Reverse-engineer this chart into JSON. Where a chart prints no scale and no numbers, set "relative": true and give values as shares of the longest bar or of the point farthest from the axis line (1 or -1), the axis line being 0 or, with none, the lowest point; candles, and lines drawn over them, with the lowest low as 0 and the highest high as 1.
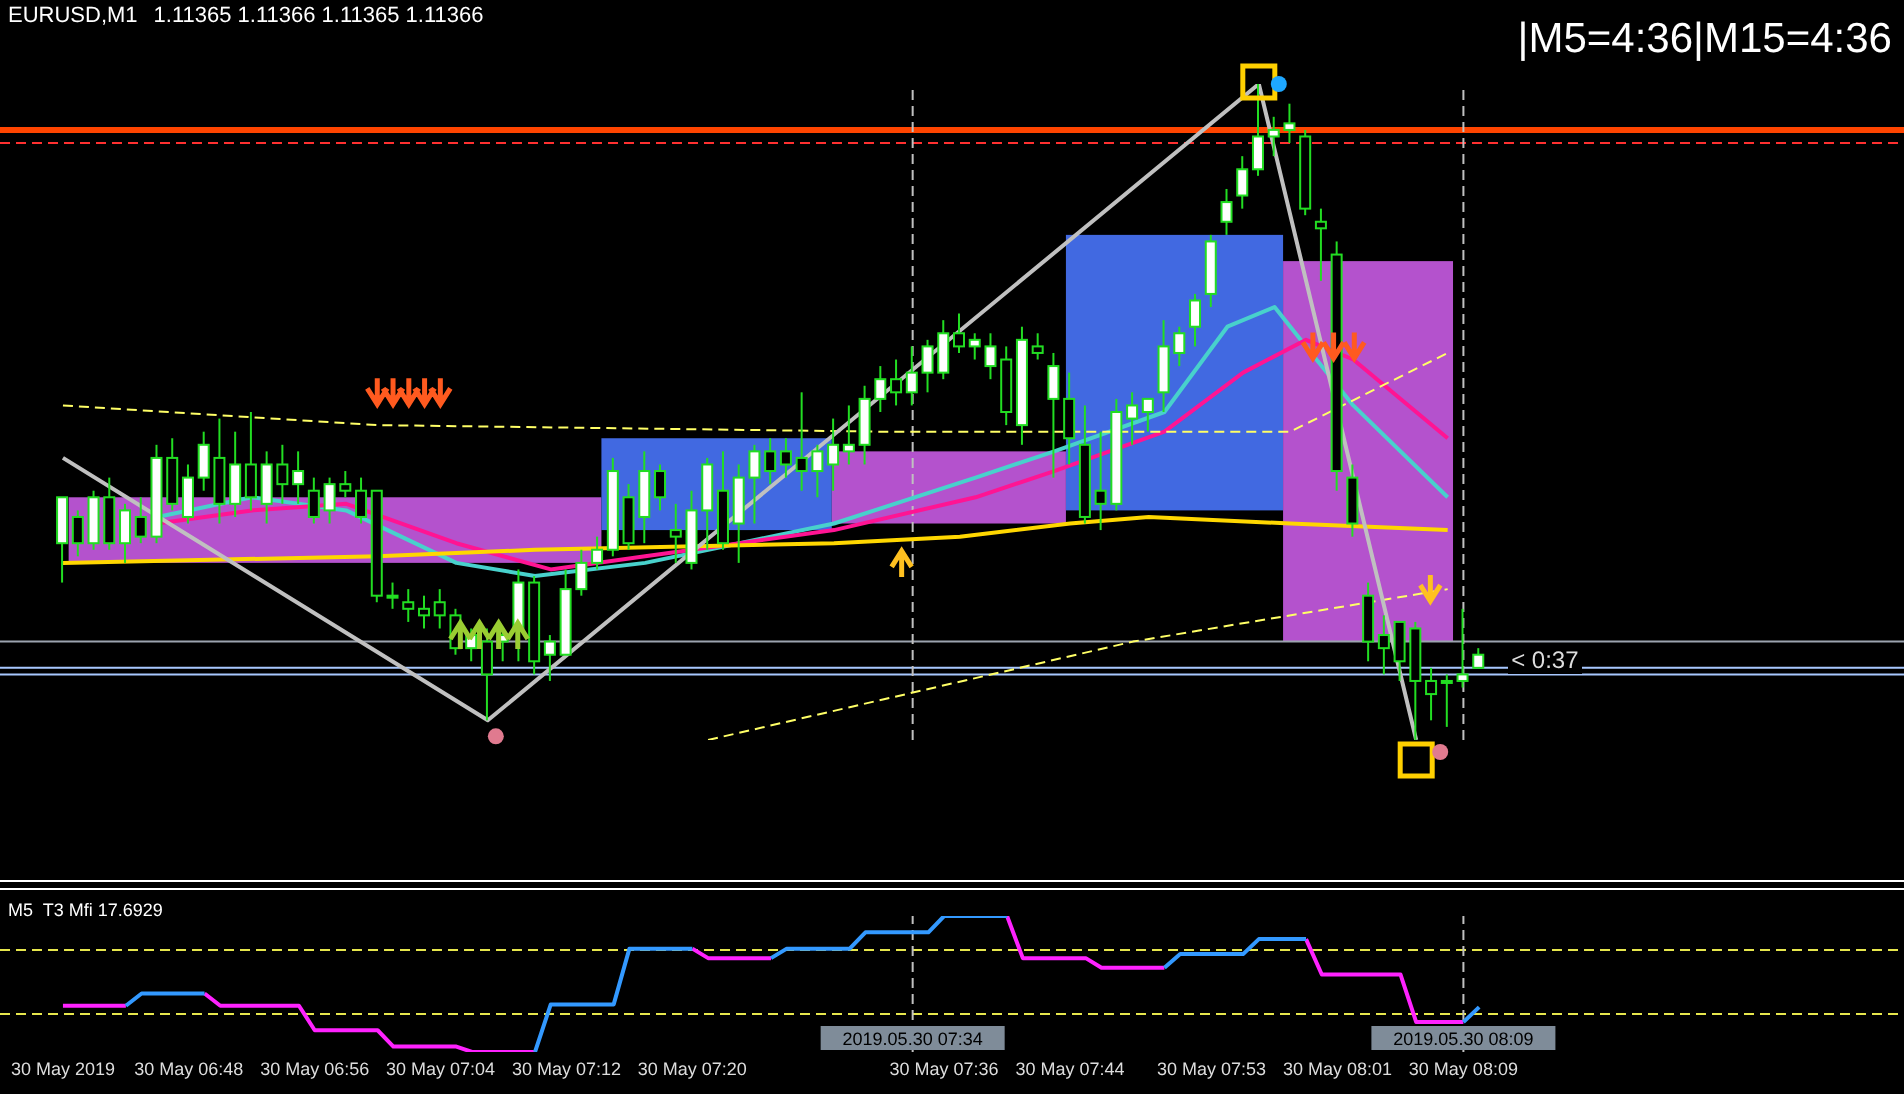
{
  "chart_data": [
    {
      "type": "candlestick",
      "title": "EURUSD,M1",
      "subtitle": "1.11365 1.11366 1.11365 1.11366",
      "relative": true,
      "tick_labels": false,
      "xlim": [
        "2019-05-30T06:36",
        "2019-05-30T08:37"
      ],
      "x": [
        "2019-05-30T06:40",
        "2019-05-30T06:41",
        "2019-05-30T06:42",
        "2019-05-30T06:43",
        "2019-05-30T06:44",
        "2019-05-30T06:45",
        "2019-05-30T06:46",
        "2019-05-30T06:47",
        "2019-05-30T06:48",
        "2019-05-30T06:49",
        "2019-05-30T06:50",
        "2019-05-30T06:51",
        "2019-05-30T06:52",
        "2019-05-30T06:53",
        "2019-05-30T06:54",
        "2019-05-30T06:55",
        "2019-05-30T06:56",
        "2019-05-30T06:57",
        "2019-05-30T06:58",
        "2019-05-30T06:59",
        "2019-05-30T07:00",
        "2019-05-30T07:01",
        "2019-05-30T07:02",
        "2019-05-30T07:03",
        "2019-05-30T07:04",
        "2019-05-30T07:05",
        "2019-05-30T07:06",
        "2019-05-30T07:07",
        "2019-05-30T07:08",
        "2019-05-30T07:09",
        "2019-05-30T07:10",
        "2019-05-30T07:11",
        "2019-05-30T07:12",
        "2019-05-30T07:13",
        "2019-05-30T07:14",
        "2019-05-30T07:15",
        "2019-05-30T07:16",
        "2019-05-30T07:17",
        "2019-05-30T07:18",
        "2019-05-30T07:19",
        "2019-05-30T07:20",
        "2019-05-30T07:21",
        "2019-05-30T07:22",
        "2019-05-30T07:23",
        "2019-05-30T07:24",
        "2019-05-30T07:25",
        "2019-05-30T07:26",
        "2019-05-30T07:27",
        "2019-05-30T07:28",
        "2019-05-30T07:29",
        "2019-05-30T07:30",
        "2019-05-30T07:31",
        "2019-05-30T07:32",
        "2019-05-30T07:33",
        "2019-05-30T07:34",
        "2019-05-30T07:35",
        "2019-05-30T07:36",
        "2019-05-30T07:37",
        "2019-05-30T07:38",
        "2019-05-30T07:39",
        "2019-05-30T07:40",
        "2019-05-30T07:41",
        "2019-05-30T07:42",
        "2019-05-30T07:43",
        "2019-05-30T07:44",
        "2019-05-30T07:45",
        "2019-05-30T07:46",
        "2019-05-30T07:47",
        "2019-05-30T07:48",
        "2019-05-30T07:49",
        "2019-05-30T07:50",
        "2019-05-30T07:51",
        "2019-05-30T07:52",
        "2019-05-30T07:53",
        "2019-05-30T07:54",
        "2019-05-30T07:55",
        "2019-05-30T07:56",
        "2019-05-30T07:57",
        "2019-05-30T07:58",
        "2019-05-30T07:59",
        "2019-05-30T08:00",
        "2019-05-30T08:01",
        "2019-05-30T08:02",
        "2019-05-30T08:03",
        "2019-05-30T08:04",
        "2019-05-30T08:05",
        "2019-05-30T08:06",
        "2019-05-30T08:07",
        "2019-05-30T08:08",
        "2019-05-30T08:09",
        "2019-05-30T08:10"
      ],
      "ohlc": [
        [
          0.3,
          0.37,
          0.24,
          0.37
        ],
        [
          0.34,
          0.35,
          0.28,
          0.3
        ],
        [
          0.3,
          0.38,
          0.29,
          0.37
        ],
        [
          0.37,
          0.4,
          0.29,
          0.3
        ],
        [
          0.3,
          0.36,
          0.27,
          0.35
        ],
        [
          0.34,
          0.37,
          0.3,
          0.31
        ],
        [
          0.31,
          0.45,
          0.3,
          0.43
        ],
        [
          0.43,
          0.46,
          0.35,
          0.36
        ],
        [
          0.34,
          0.42,
          0.33,
          0.4
        ],
        [
          0.4,
          0.47,
          0.38,
          0.45
        ],
        [
          0.43,
          0.49,
          0.33,
          0.36
        ],
        [
          0.36,
          0.47,
          0.34,
          0.42
        ],
        [
          0.42,
          0.5,
          0.35,
          0.37
        ],
        [
          0.36,
          0.44,
          0.33,
          0.42
        ],
        [
          0.42,
          0.45,
          0.36,
          0.39
        ],
        [
          0.39,
          0.44,
          0.36,
          0.41
        ],
        [
          0.38,
          0.4,
          0.33,
          0.34
        ],
        [
          0.35,
          0.4,
          0.33,
          0.39
        ],
        [
          0.39,
          0.41,
          0.37,
          0.38
        ],
        [
          0.38,
          0.4,
          0.33,
          0.34
        ],
        [
          0.38,
          0.38,
          0.21,
          0.22
        ],
        [
          0.22,
          0.24,
          0.2,
          0.22
        ],
        [
          0.21,
          0.23,
          0.18,
          0.2
        ],
        [
          0.2,
          0.22,
          0.17,
          0.19
        ],
        [
          0.21,
          0.23,
          0.17,
          0.19
        ],
        [
          0.19,
          0.2,
          0.13,
          0.14
        ],
        [
          0.14,
          0.17,
          0.12,
          0.16
        ],
        [
          0.15,
          0.17,
          0.03,
          0.1
        ],
        [
          0.15,
          0.17,
          0.12,
          0.16
        ],
        [
          0.17,
          0.26,
          0.12,
          0.24
        ],
        [
          0.24,
          0.25,
          0.1,
          0.12
        ],
        [
          0.13,
          0.16,
          0.09,
          0.15
        ],
        [
          0.13,
          0.26,
          0.13,
          0.23
        ],
        [
          0.23,
          0.29,
          0.22,
          0.27
        ],
        [
          0.27,
          0.31,
          0.26,
          0.29
        ],
        [
          0.29,
          0.43,
          0.28,
          0.41
        ],
        [
          0.37,
          0.39,
          0.29,
          0.3
        ],
        [
          0.34,
          0.44,
          0.3,
          0.41
        ],
        [
          0.41,
          0.42,
          0.35,
          0.37
        ],
        [
          0.32,
          0.36,
          0.27,
          0.31
        ],
        [
          0.27,
          0.38,
          0.26,
          0.35
        ],
        [
          0.35,
          0.43,
          0.29,
          0.42
        ],
        [
          0.38,
          0.44,
          0.29,
          0.3
        ],
        [
          0.33,
          0.42,
          0.27,
          0.4
        ],
        [
          0.4,
          0.45,
          0.33,
          0.44
        ],
        [
          0.44,
          0.46,
          0.39,
          0.41
        ],
        [
          0.44,
          0.46,
          0.4,
          0.42
        ],
        [
          0.43,
          0.53,
          0.38,
          0.41
        ],
        [
          0.41,
          0.45,
          0.37,
          0.44
        ],
        [
          0.42,
          0.49,
          0.38,
          0.45
        ],
        [
          0.44,
          0.51,
          0.42,
          0.45
        ],
        [
          0.45,
          0.54,
          0.42,
          0.52
        ],
        [
          0.52,
          0.57,
          0.5,
          0.55
        ],
        [
          0.55,
          0.58,
          0.51,
          0.53
        ],
        [
          0.53,
          0.6,
          0.51,
          0.56
        ],
        [
          0.56,
          0.61,
          0.53,
          0.6
        ],
        [
          0.56,
          0.64,
          0.55,
          0.62
        ],
        [
          0.62,
          0.65,
          0.59,
          0.6
        ],
        [
          0.6,
          0.62,
          0.58,
          0.61
        ],
        [
          0.57,
          0.62,
          0.55,
          0.6
        ],
        [
          0.58,
          0.6,
          0.48,
          0.5
        ],
        [
          0.48,
          0.63,
          0.45,
          0.61
        ],
        [
          0.6,
          0.62,
          0.58,
          0.59
        ],
        [
          0.52,
          0.59,
          0.4,
          0.57
        ],
        [
          0.52,
          0.56,
          0.42,
          0.46
        ],
        [
          0.45,
          0.51,
          0.33,
          0.34
        ],
        [
          0.38,
          0.47,
          0.32,
          0.36
        ],
        [
          0.36,
          0.52,
          0.35,
          0.5
        ],
        [
          0.49,
          0.53,
          0.45,
          0.51
        ],
        [
          0.5,
          0.52,
          0.47,
          0.52
        ],
        [
          0.53,
          0.64,
          0.5,
          0.6
        ],
        [
          0.59,
          0.63,
          0.57,
          0.62
        ],
        [
          0.63,
          0.68,
          0.6,
          0.67
        ],
        [
          0.68,
          0.77,
          0.66,
          0.76
        ],
        [
          0.79,
          0.84,
          0.77,
          0.82
        ],
        [
          0.83,
          0.89,
          0.81,
          0.87
        ],
        [
          0.87,
          1.0,
          0.86,
          0.92
        ],
        [
          0.92,
          0.95,
          0.89,
          0.93
        ],
        [
          0.93,
          0.97,
          0.91,
          0.94
        ],
        [
          0.92,
          0.93,
          0.8,
          0.81
        ],
        [
          0.79,
          0.81,
          0.7,
          0.78
        ],
        [
          0.74,
          0.76,
          0.38,
          0.41
        ],
        [
          0.4,
          0.42,
          0.31,
          0.33
        ],
        [
          0.22,
          0.24,
          0.12,
          0.15
        ],
        [
          0.16,
          0.19,
          0.1,
          0.14
        ],
        [
          0.18,
          0.18,
          0.09,
          0.12
        ],
        [
          0.17,
          0.18,
          0.0,
          0.09
        ],
        [
          0.09,
          0.11,
          0.03,
          0.07
        ],
        [
          0.09,
          0.1,
          0.02,
          0.09
        ],
        [
          0.09,
          0.2,
          0.08,
          0.1
        ],
        [
          0.11,
          0.14,
          0.11,
          0.13
        ]
      ],
      "series": [
        {
          "type": "line",
          "color": "#48d1cc",
          "x": [
            "2019-05-30T06:46",
            "2019-05-30T06:52",
            "2019-05-30T06:58",
            "2019-05-30T07:05",
            "2019-05-30T07:10",
            "2019-05-30T07:17",
            "2019-05-30T07:23",
            "2019-05-30T07:29",
            "2019-05-30T07:38",
            "2019-05-30T07:43",
            "2019-05-30T07:50",
            "2019-05-30T07:54",
            "2019-05-30T07:57",
            "2019-05-30T07:59",
            "2019-05-30T08:02",
            "2019-05-30T08:08"
          ],
          "values": [
            0.34,
            0.37,
            0.35,
            0.27,
            0.25,
            0.27,
            0.3,
            0.33,
            0.4,
            0.44,
            0.5,
            0.63,
            0.66,
            0.6,
            0.51,
            0.37
          ]
        },
        {
          "type": "line",
          "color": "#ff1493",
          "x": [
            "2019-05-30T06:46",
            "2019-05-30T06:52",
            "2019-05-30T06:58",
            "2019-05-30T07:05",
            "2019-05-30T07:11",
            "2019-05-30T07:17",
            "2019-05-30T07:23",
            "2019-05-30T07:29",
            "2019-05-30T07:38",
            "2019-05-30T07:43",
            "2019-05-30T07:50",
            "2019-05-30T07:55",
            "2019-05-30T07:59",
            "2019-05-30T08:02",
            "2019-05-30T08:08"
          ],
          "values": [
            0.33,
            0.35,
            0.36,
            0.3,
            0.26,
            0.28,
            0.3,
            0.32,
            0.37,
            0.41,
            0.47,
            0.56,
            0.61,
            0.58,
            0.46
          ]
        },
        {
          "type": "line",
          "color": "#ffd700",
          "x": [
            "2019-05-30T06:40",
            "2019-05-30T07:00",
            "2019-05-30T07:10",
            "2019-05-30T07:29",
            "2019-05-30T07:37",
            "2019-05-30T07:44",
            "2019-05-30T07:49",
            "2019-05-30T07:58",
            "2019-05-30T08:08"
          ],
          "values": [
            0.27,
            0.28,
            0.29,
            0.3,
            0.31,
            0.33,
            0.34,
            0.33,
            0.32
          ]
        },
        {
          "type": "line",
          "color": "#ffff66",
          "line_style": "dashed",
          "x": [
            "2019-05-30T06:40",
            "2019-05-30T07:00",
            "2019-05-30T07:32",
            "2019-05-30T07:58",
            "2019-05-30T08:08"
          ],
          "values": [
            0.51,
            0.48,
            0.47,
            0.47,
            0.59
          ]
        },
        {
          "type": "line",
          "color": "#ffff66",
          "line_style": "dashed",
          "x": [
            "2019-05-30T07:21",
            "2019-05-30T07:30",
            "2019-05-30T07:48",
            "2019-05-30T08:08"
          ],
          "values": [
            0.0,
            0.05,
            0.15,
            0.23
          ]
        },
        {
          "type": "line",
          "color": "#c0c0c0",
          "x": [
            "2019-05-30T06:40",
            "2019-05-30T07:07",
            "2019-05-30T07:56",
            "2019-05-30T08:06"
          ],
          "values": [
            0.43,
            0.03,
            1.0,
            0.0
          ]
        }
      ],
      "ref_lines": [
        {
          "axis": "y",
          "value": 0.93,
          "color": "#ff4500",
          "line_style": "solid"
        },
        {
          "axis": "y",
          "value": 0.91,
          "color": "#ff3030",
          "line_style": "dashed"
        },
        {
          "axis": "y",
          "value": 0.15,
          "color": "#9ca3af",
          "line_style": "solid"
        },
        {
          "axis": "y",
          "value": 0.11,
          "color": "#a8c8ff",
          "line_style": "solid"
        },
        {
          "axis": "y",
          "value": 0.1,
          "color": "#a8c8ff",
          "line_style": "solid"
        },
        {
          "axis": "x",
          "value": "2019-05-30T07:34",
          "color": "#c0c0c0",
          "line_style": "dashed"
        },
        {
          "axis": "x",
          "value": "2019-05-30T08:09",
          "color": "#c0c0c0",
          "line_style": "dashed"
        }
      ],
      "annotations": [
        "|M5=4:36|M15=4:36",
        "< 0:37"
      ]
    },
    {
      "type": "line",
      "title": "M5  T3 Mfi 17.6929",
      "relative": true,
      "tick_labels": "x",
      "xlim": [
        "2019-05-30T06:36",
        "2019-05-30T08:37"
      ],
      "xticks": [
        {
          "value": "2019-05-30T06:40",
          "label": "30 May 2019"
        },
        {
          "value": "2019-05-30T06:48",
          "label": "30 May 06:48"
        },
        {
          "value": "2019-05-30T06:56",
          "label": "30 May 06:56"
        },
        {
          "value": "2019-05-30T07:04",
          "label": "30 May 07:04"
        },
        {
          "value": "2019-05-30T07:12",
          "label": "30 May 07:12"
        },
        {
          "value": "2019-05-30T07:20",
          "label": "30 May 07:20"
        },
        {
          "value": "2019-05-30T07:36",
          "label": "30 May 07:36"
        },
        {
          "value": "2019-05-30T07:44",
          "label": "30 May 07:44"
        },
        {
          "value": "2019-05-30T07:53",
          "label": "30 May 07:53"
        },
        {
          "value": "2019-05-30T08:01",
          "label": "30 May 08:01"
        },
        {
          "value": "2019-05-30T08:09",
          "label": "30 May 08:09"
        }
      ],
      "series": [
        {
          "color": "#ff22ff",
          "x": [
            "2019-05-30T06:40",
            "2019-05-30T06:44",
            "2019-05-30T06:46",
            "2019-05-30T06:49",
            "2019-05-30T06:50",
            "2019-05-30T06:55",
            "2019-05-30T06:56",
            "2019-05-30T07:00",
            "2019-05-30T07:01",
            "2019-05-30T07:05",
            "2019-05-30T07:06",
            "2019-05-30T07:10",
            "2019-05-30T07:15",
            "2019-05-30T07:20",
            "2019-05-30T07:21",
            "2019-05-30T07:25",
            "2019-05-30T07:30",
            "2019-05-30T07:40",
            "2019-05-30T07:41",
            "2019-05-30T07:45",
            "2019-05-30T07:46",
            "2019-05-30T07:50",
            "2019-05-30T07:55",
            "2019-05-30T07:59",
            "2019-05-30T08:00",
            "2019-05-30T08:05",
            "2019-05-30T08:06",
            "2019-05-30T08:09"
          ],
          "values": [
            0.34,
            0.34,
            null,
            0.43,
            0.34,
            0.34,
            0.16,
            0.16,
            0.04,
            0.04,
            0,
            0,
            null,
            0.76,
            0.69,
            0.69,
            null,
            1,
            0.69,
            0.69,
            0.62,
            0.62,
            null,
            0.83,
            0.57,
            0.57,
            0.22,
            0.22
          ]
        },
        {
          "color": "#3399ff",
          "x": [
            "2019-05-30T06:44",
            "2019-05-30T06:45",
            "2019-05-30T06:49",
            "2019-05-30T06:55",
            "2019-05-30T07:10",
            "2019-05-30T07:11",
            "2019-05-30T07:15",
            "2019-05-30T07:16",
            "2019-05-30T07:20",
            "2019-05-30T07:22",
            "2019-05-30T07:25",
            "2019-05-30T07:26",
            "2019-05-30T07:30",
            "2019-05-30T07:31",
            "2019-05-30T07:35",
            "2019-05-30T07:36",
            "2019-05-30T07:40",
            "2019-05-30T07:43",
            "2019-05-30T07:50",
            "2019-05-30T07:51",
            "2019-05-30T07:55",
            "2019-05-30T07:56",
            "2019-05-30T07:59",
            "2019-05-30T08:02",
            "2019-05-30T08:09",
            "2019-05-30T08:10"
          ],
          "values": [
            0.34,
            0.43,
            0.43,
            null,
            0,
            0.35,
            0.35,
            0.76,
            0.76,
            null,
            0.69,
            0.76,
            0.76,
            0.88,
            0.88,
            1,
            1,
            null,
            0.62,
            0.72,
            0.72,
            0.83,
            0.83,
            null,
            0.22,
            0.33
          ]
        }
      ],
      "ref_lines": [
        {
          "axis": "y",
          "value": 0.75,
          "color": "#e6e64c",
          "line_style": "dashed"
        },
        {
          "axis": "y",
          "value": 0.28,
          "color": "#e6e64c",
          "line_style": "dashed"
        },
        {
          "axis": "x",
          "value": "2019-05-30T07:34",
          "color": "#c0c0c0",
          "line_style": "dashed",
          "label": "2019.05.30 07:34"
        },
        {
          "axis": "x",
          "value": "2019-05-30T08:09",
          "color": "#c0c0c0",
          "line_style": "dashed",
          "label": "2019.05.30 08:09"
        }
      ]
    }
  ]
}
